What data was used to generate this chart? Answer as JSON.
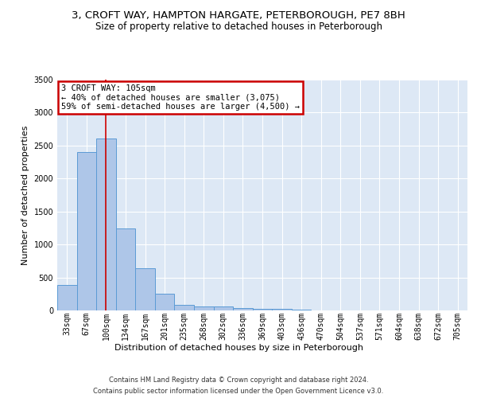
{
  "title1": "3, CROFT WAY, HAMPTON HARGATE, PETERBOROUGH, PE7 8BH",
  "title2": "Size of property relative to detached houses in Peterborough",
  "xlabel": "Distribution of detached houses by size in Peterborough",
  "ylabel": "Number of detached properties",
  "footer1": "Contains HM Land Registry data © Crown copyright and database right 2024.",
  "footer2": "Contains public sector information licensed under the Open Government Licence v3.0.",
  "categories": [
    "33sqm",
    "67sqm",
    "100sqm",
    "134sqm",
    "167sqm",
    "201sqm",
    "235sqm",
    "268sqm",
    "302sqm",
    "336sqm",
    "369sqm",
    "403sqm",
    "436sqm",
    "470sqm",
    "504sqm",
    "537sqm",
    "571sqm",
    "604sqm",
    "638sqm",
    "672sqm",
    "705sqm"
  ],
  "values": [
    390,
    2400,
    2610,
    1240,
    640,
    255,
    90,
    60,
    55,
    40,
    30,
    20,
    10,
    5,
    5,
    3,
    2,
    2,
    1,
    1,
    1
  ],
  "bar_color": "#aec6e8",
  "bar_edge_color": "#5b9bd5",
  "vline_x": 2,
  "vline_color": "#cc0000",
  "annotation_text": "3 CROFT WAY: 105sqm\n← 40% of detached houses are smaller (3,075)\n59% of semi-detached houses are larger (4,500) →",
  "annotation_box_color": "#ffffff",
  "annotation_box_edge_color": "#cc0000",
  "ylim": [
    0,
    3500
  ],
  "yticks": [
    0,
    500,
    1000,
    1500,
    2000,
    2500,
    3000,
    3500
  ],
  "background_color": "#dde8f5",
  "grid_color": "#ffffff",
  "title1_fontsize": 9.5,
  "title2_fontsize": 8.5,
  "xlabel_fontsize": 8,
  "ylabel_fontsize": 8,
  "tick_fontsize": 7,
  "footer_fontsize": 6,
  "annot_fontsize": 7.5
}
